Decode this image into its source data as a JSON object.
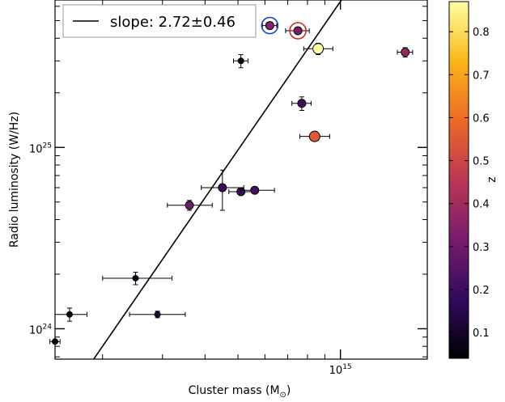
{
  "chart_data": {
    "type": "scatter",
    "title": "",
    "xlabel": "Cluster mass (M",
    "xlabel_sub": "⊙",
    "xlabel_close": ")",
    "ylabel": "Radio luminosity (W/Hz)",
    "xscale": "log",
    "yscale": "log",
    "xlim": [
      145000000000000.0,
      1800000000000000.0
    ],
    "ylim": [
      6.8e+23,
      6.5e+25
    ],
    "x_ticks": [
      {
        "value": 1000000000000000.0,
        "base": "10",
        "exp": "15"
      }
    ],
    "y_ticks": [
      {
        "value": 1e+24,
        "base": "10",
        "exp": "24"
      },
      {
        "value": 1e+25,
        "base": "10",
        "exp": "25"
      }
    ],
    "legend": {
      "label": "slope: 2.72",
      "pm": "±0.46",
      "position": "top-left"
    },
    "fit_line": {
      "slope": 2.72,
      "x_ref": 850000000000000.0,
      "y_ref": 4.1e+25
    },
    "colorbar": {
      "label": "z",
      "min": 0.04,
      "max": 0.87,
      "ticks": [
        "0.1",
        "0.2",
        "0.3",
        "0.4",
        "0.5",
        "0.6",
        "0.7",
        "0.8"
      ],
      "tick_values": [
        0.1,
        0.2,
        0.3,
        0.4,
        0.5,
        0.6,
        0.7,
        0.8
      ],
      "colormap": [
        "#000004",
        "#320a5e",
        "#781c6d",
        "#bc3754",
        "#ed6925",
        "#fbb61a",
        "#fcffa4"
      ]
    },
    "points": [
      {
        "x": 145000000000000.0,
        "y": 8.5e+23,
        "xerr": [
          5000000000000.0,
          5000000000000.0
        ],
        "yerr": [
          5e+21,
          5e+21
        ],
        "z": 0.06
      },
      {
        "x": 160000000000000.0,
        "y": 1.2e+24,
        "xerr": [
          15000000000000.0,
          20000000000000.0
        ],
        "yerr": [
          1e+23,
          1e+23
        ],
        "z": 0.05
      },
      {
        "x": 250000000000000.0,
        "y": 1.9e+24,
        "xerr": [
          50000000000000.0,
          70000000000000.0
        ],
        "yerr": [
          1.5e+23,
          1.5e+23
        ],
        "z": 0.08
      },
      {
        "x": 290000000000000.0,
        "y": 1.2e+24,
        "xerr": [
          50000000000000.0,
          60000000000000.0
        ],
        "yerr": [
          5e+22,
          5e+22
        ],
        "z": 0.12
      },
      {
        "x": 360000000000000.0,
        "y": 4.8e+24,
        "xerr": [
          50000000000000.0,
          60000000000000.0
        ],
        "yerr": [
          3e+23,
          3e+23
        ],
        "z": 0.3
      },
      {
        "x": 450000000000000.0,
        "y": 6e+24,
        "xerr": [
          60000000000000.0,
          70000000000000.0
        ],
        "yerr": [
          1.5e+24,
          1.5e+24
        ],
        "z": 0.2
      },
      {
        "x": 510000000000000.0,
        "y": 5.7e+24,
        "xerr": [
          40000000000000.0,
          50000000000000.0
        ],
        "yerr": [
          2e+23,
          2e+23
        ],
        "z": 0.2
      },
      {
        "x": 560000000000000.0,
        "y": 5.8e+24,
        "xerr": [
          50000000000000.0,
          80000000000000.0
        ],
        "yerr": [
          2e+23,
          2e+23
        ],
        "z": 0.22
      },
      {
        "x": 510000000000000.0,
        "y": 3e+25,
        "xerr": [
          25000000000000.0,
          25000000000000.0
        ],
        "yerr": [
          2.5e+24,
          2.5e+24
        ],
        "z": 0.05
      },
      {
        "x": 770000000000000.0,
        "y": 1.75e+25,
        "xerr": [
          50000000000000.0,
          50000000000000.0
        ],
        "yerr": [
          1.5e+24,
          1.5e+24
        ],
        "z": 0.2
      },
      {
        "x": 840000000000000.0,
        "y": 1.15e+25,
        "xerr": [
          80000000000000.0,
          90000000000000.0
        ],
        "yerr": [
          5e+23,
          5e+23
        ],
        "z": 0.55
      },
      {
        "x": 860000000000000.0,
        "y": 3.5e+25,
        "xerr": [
          80000000000000.0,
          90000000000000.0
        ],
        "yerr": [
          2.5e+24,
          2.5e+24
        ],
        "z": 0.87
      },
      {
        "x": 620000000000000.0,
        "y": 4.7e+25,
        "xerr": [
          30000000000000.0,
          30000000000000.0
        ],
        "yerr": [
          1.5e+24,
          1.5e+24
        ],
        "z": 0.35,
        "ring": "#1f3fd6"
      },
      {
        "x": 750000000000000.0,
        "y": 4.4e+25,
        "xerr": [
          60000000000000.0,
          60000000000000.0
        ],
        "yerr": [
          1.5e+24,
          1.5e+24
        ],
        "z": 0.32,
        "ring": "#e02020"
      },
      {
        "x": 1550000000000000.0,
        "y": 3.35e+25,
        "xerr": [
          80000000000000.0,
          80000000000000.0
        ],
        "yerr": [
          2e+24,
          2e+24
        ],
        "z": 0.38
      }
    ]
  }
}
